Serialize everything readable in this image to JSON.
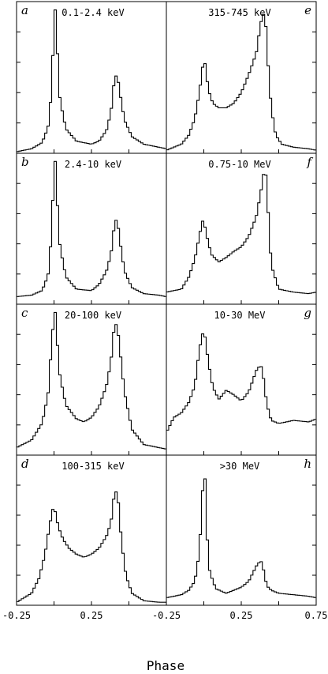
{
  "chart_data": {
    "type": "line",
    "title": "",
    "xlabel": "Phase",
    "ylabel": "",
    "xlim": [
      -0.25,
      0.75
    ],
    "x_ticks": [
      {
        "value": -0.25,
        "label": "-0.25"
      },
      {
        "value": 0.25,
        "label": "0.25"
      },
      {
        "value": 0.75,
        "label": "0.75"
      }
    ],
    "grid": false,
    "legend": "none",
    "panels": [
      {
        "letter": "a",
        "energy": "0.1-2.4 keV",
        "column": 0,
        "row": 0,
        "x": [
          -0.25,
          -0.15,
          -0.08,
          -0.04,
          -0.02,
          0.0,
          0.01,
          0.02,
          0.04,
          0.08,
          0.15,
          0.25,
          0.3,
          0.35,
          0.38,
          0.4,
          0.42,
          0.44,
          0.47,
          0.52,
          0.6,
          0.7,
          0.75
        ],
        "y": [
          0.01,
          0.03,
          0.07,
          0.17,
          0.37,
          0.82,
          0.98,
          0.72,
          0.35,
          0.16,
          0.08,
          0.06,
          0.08,
          0.15,
          0.27,
          0.46,
          0.53,
          0.4,
          0.22,
          0.11,
          0.06,
          0.04,
          0.03
        ]
      },
      {
        "letter": "b",
        "energy": "2.4-10 keV",
        "column": 0,
        "row": 1,
        "x": [
          -0.25,
          -0.15,
          -0.08,
          -0.04,
          -0.02,
          0.0,
          0.01,
          0.02,
          0.04,
          0.08,
          0.15,
          0.25,
          0.3,
          0.35,
          0.38,
          0.4,
          0.42,
          0.44,
          0.47,
          0.52,
          0.6,
          0.7,
          0.75
        ],
        "y": [
          0.05,
          0.06,
          0.09,
          0.19,
          0.42,
          0.86,
          0.97,
          0.71,
          0.38,
          0.18,
          0.1,
          0.09,
          0.13,
          0.22,
          0.33,
          0.5,
          0.58,
          0.42,
          0.22,
          0.11,
          0.07,
          0.06,
          0.05
        ]
      },
      {
        "letter": "c",
        "energy": "20-100 keV",
        "column": 0,
        "row": 2,
        "x": [
          -0.25,
          -0.15,
          -0.08,
          -0.04,
          -0.02,
          0.0,
          0.01,
          0.02,
          0.04,
          0.08,
          0.15,
          0.2,
          0.25,
          0.3,
          0.35,
          0.38,
          0.4,
          0.42,
          0.44,
          0.47,
          0.52,
          0.6,
          0.7,
          0.75
        ],
        "y": [
          0.05,
          0.1,
          0.21,
          0.4,
          0.68,
          0.93,
          0.95,
          0.77,
          0.52,
          0.33,
          0.24,
          0.22,
          0.25,
          0.32,
          0.46,
          0.62,
          0.83,
          0.88,
          0.7,
          0.42,
          0.17,
          0.07,
          0.05,
          0.04
        ]
      },
      {
        "letter": "d",
        "energy": "100-315 keV",
        "column": 0,
        "row": 3,
        "x": [
          -0.25,
          -0.15,
          -0.1,
          -0.06,
          -0.03,
          -0.01,
          0.0,
          0.01,
          0.03,
          0.06,
          0.1,
          0.15,
          0.2,
          0.25,
          0.3,
          0.35,
          0.38,
          0.4,
          0.42,
          0.43,
          0.45,
          0.48,
          0.52,
          0.6,
          0.7,
          0.75
        ],
        "y": [
          0.02,
          0.08,
          0.18,
          0.34,
          0.53,
          0.63,
          0.67,
          0.61,
          0.52,
          0.44,
          0.38,
          0.34,
          0.32,
          0.34,
          0.38,
          0.46,
          0.55,
          0.72,
          0.77,
          0.68,
          0.43,
          0.2,
          0.08,
          0.03,
          0.02,
          0.02
        ]
      },
      {
        "letter": "e",
        "energy": "315-745 keV",
        "column": 1,
        "row": 0,
        "x": [
          -0.25,
          -0.15,
          -0.1,
          -0.06,
          -0.03,
          -0.01,
          0.0,
          0.01,
          0.03,
          0.06,
          0.1,
          0.15,
          0.2,
          0.25,
          0.3,
          0.35,
          0.38,
          0.4,
          0.42,
          0.43,
          0.45,
          0.48,
          0.52,
          0.6,
          0.7,
          0.75
        ],
        "y": [
          0.02,
          0.06,
          0.12,
          0.23,
          0.4,
          0.55,
          0.63,
          0.58,
          0.42,
          0.33,
          0.3,
          0.3,
          0.33,
          0.4,
          0.52,
          0.66,
          0.86,
          0.92,
          0.8,
          0.57,
          0.3,
          0.12,
          0.06,
          0.04,
          0.03,
          0.02
        ]
      },
      {
        "letter": "f",
        "energy": "0.75-10 MeV",
        "column": 1,
        "row": 1,
        "x": [
          -0.25,
          -0.15,
          -0.1,
          -0.06,
          -0.03,
          -0.01,
          0.0,
          0.02,
          0.05,
          0.1,
          0.15,
          0.2,
          0.25,
          0.3,
          0.35,
          0.38,
          0.4,
          0.42,
          0.43,
          0.45,
          0.5,
          0.6,
          0.7,
          0.75
        ],
        "y": [
          0.08,
          0.1,
          0.18,
          0.3,
          0.45,
          0.55,
          0.55,
          0.45,
          0.33,
          0.28,
          0.31,
          0.35,
          0.38,
          0.45,
          0.58,
          0.74,
          0.87,
          0.85,
          0.6,
          0.26,
          0.1,
          0.08,
          0.07,
          0.08
        ]
      },
      {
        "letter": "g",
        "energy": "10-30 MeV",
        "column": 1,
        "row": 2,
        "x": [
          -0.25,
          -0.2,
          -0.15,
          -0.1,
          -0.06,
          -0.03,
          0.0,
          0.03,
          0.06,
          0.1,
          0.15,
          0.2,
          0.25,
          0.3,
          0.35,
          0.38,
          0.4,
          0.42,
          0.45,
          0.5,
          0.6,
          0.7,
          0.75
        ],
        "y": [
          0.15,
          0.25,
          0.28,
          0.35,
          0.46,
          0.7,
          0.84,
          0.62,
          0.45,
          0.37,
          0.43,
          0.4,
          0.36,
          0.42,
          0.56,
          0.6,
          0.5,
          0.34,
          0.23,
          0.21,
          0.23,
          0.22,
          0.24
        ]
      },
      {
        "letter": "h",
        "energy": ">30 MeV",
        "column": 1,
        "row": 3,
        "x": [
          -0.25,
          -0.15,
          -0.1,
          -0.06,
          -0.03,
          -0.01,
          0.0,
          0.01,
          0.02,
          0.04,
          0.08,
          0.15,
          0.25,
          0.3,
          0.35,
          0.38,
          0.4,
          0.42,
          0.45,
          0.5,
          0.6,
          0.7,
          0.75
        ],
        "y": [
          0.05,
          0.07,
          0.1,
          0.16,
          0.35,
          0.72,
          0.92,
          0.82,
          0.48,
          0.22,
          0.11,
          0.08,
          0.12,
          0.16,
          0.26,
          0.3,
          0.23,
          0.13,
          0.1,
          0.08,
          0.07,
          0.06,
          0.05
        ]
      }
    ]
  },
  "colors": {
    "line": "#000000",
    "frame": "#000000",
    "background": "#ffffff"
  }
}
